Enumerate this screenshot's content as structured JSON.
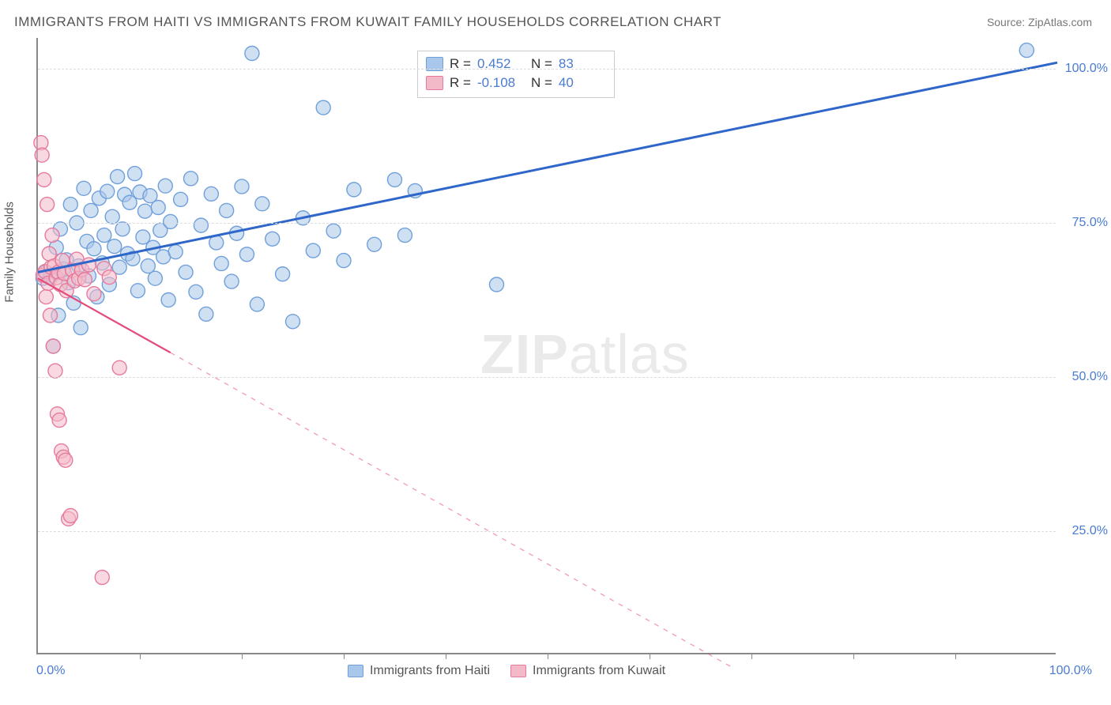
{
  "title": "IMMIGRANTS FROM HAITI VS IMMIGRANTS FROM KUWAIT FAMILY HOUSEHOLDS CORRELATION CHART",
  "source": "Source: ZipAtlas.com",
  "watermark": "ZIPatlas",
  "y_axis_label": "Family Households",
  "chart": {
    "type": "scatter",
    "xlim": [
      0,
      100
    ],
    "ylim": [
      5,
      105
    ],
    "x_ticks_minor": [
      10,
      20,
      30,
      40,
      50,
      60,
      70,
      80,
      90
    ],
    "y_gridlines": [
      25,
      50,
      75,
      100
    ],
    "y_tick_labels": [
      "25.0%",
      "50.0%",
      "75.0%",
      "100.0%"
    ],
    "x_min_label": "0.0%",
    "x_max_label": "100.0%",
    "background_color": "#ffffff",
    "grid_color": "#dcdcdc",
    "axis_color": "#888888",
    "marker_radius": 9,
    "marker_stroke_width": 1.4,
    "series": [
      {
        "name": "Immigrants from Haiti",
        "fill": "#a9c7ea",
        "stroke": "#6fa0da",
        "fill_opacity": 0.55,
        "R": "0.452",
        "N": "83",
        "trend": {
          "x1": 0,
          "y1": 67,
          "x2": 100,
          "y2": 101,
          "solid_until_x": 100,
          "color": "#2f66c9",
          "width": 3
        },
        "points": [
          [
            0.5,
            66
          ],
          [
            0.8,
            67
          ],
          [
            1.2,
            66.1
          ],
          [
            1.5,
            55
          ],
          [
            1.8,
            71
          ],
          [
            2,
            60
          ],
          [
            2.2,
            74
          ],
          [
            2.5,
            67.5
          ],
          [
            2.8,
            69
          ],
          [
            3,
            65.3
          ],
          [
            3.2,
            78
          ],
          [
            3.5,
            62
          ],
          [
            3.8,
            75
          ],
          [
            4,
            68
          ],
          [
            4.2,
            58
          ],
          [
            4.5,
            80.6
          ],
          [
            4.8,
            72
          ],
          [
            5,
            66.4
          ],
          [
            5.2,
            77
          ],
          [
            5.5,
            70.8
          ],
          [
            5.8,
            63
          ],
          [
            6,
            79
          ],
          [
            6.3,
            68.5
          ],
          [
            6.5,
            73
          ],
          [
            6.8,
            80.1
          ],
          [
            7,
            65
          ],
          [
            7.3,
            76
          ],
          [
            7.5,
            71.2
          ],
          [
            7.8,
            82.5
          ],
          [
            8,
            67.8
          ],
          [
            8.3,
            74
          ],
          [
            8.5,
            79.6
          ],
          [
            8.8,
            70
          ],
          [
            9,
            78.3
          ],
          [
            9.3,
            69.2
          ],
          [
            9.5,
            83
          ],
          [
            9.8,
            64
          ],
          [
            10,
            80
          ],
          [
            10.3,
            72.7
          ],
          [
            10.5,
            76.9
          ],
          [
            10.8,
            68
          ],
          [
            11,
            79.4
          ],
          [
            11.3,
            71
          ],
          [
            11.5,
            66
          ],
          [
            11.8,
            77.5
          ],
          [
            12,
            73.8
          ],
          [
            12.3,
            69.5
          ],
          [
            12.5,
            81
          ],
          [
            12.8,
            62.5
          ],
          [
            13,
            75.2
          ],
          [
            13.5,
            70.3
          ],
          [
            14,
            78.8
          ],
          [
            14.5,
            67
          ],
          [
            15,
            82.2
          ],
          [
            15.5,
            63.8
          ],
          [
            16,
            74.6
          ],
          [
            16.5,
            60.2
          ],
          [
            17,
            79.7
          ],
          [
            17.5,
            71.8
          ],
          [
            18,
            68.4
          ],
          [
            18.5,
            77
          ],
          [
            19,
            65.5
          ],
          [
            19.5,
            73.3
          ],
          [
            20,
            80.9
          ],
          [
            20.5,
            69.9
          ],
          [
            21,
            102.5
          ],
          [
            21.5,
            61.8
          ],
          [
            22,
            78.1
          ],
          [
            23,
            72.4
          ],
          [
            24,
            66.7
          ],
          [
            25,
            59
          ],
          [
            26,
            75.8
          ],
          [
            27,
            70.5
          ],
          [
            28,
            93.7
          ],
          [
            29,
            73.7
          ],
          [
            30,
            68.9
          ],
          [
            31,
            80.4
          ],
          [
            33,
            71.5
          ],
          [
            35,
            82
          ],
          [
            36,
            73
          ],
          [
            37,
            80.2
          ],
          [
            45,
            65
          ],
          [
            97,
            103
          ]
        ]
      },
      {
        "name": "Immigrants from Kuwait",
        "fill": "#f4b9c9",
        "stroke": "#e67a9c",
        "fill_opacity": 0.55,
        "R": "-0.108",
        "N": "40",
        "trend": {
          "x1": 0,
          "y1": 66,
          "x2": 68,
          "y2": 3,
          "solid_until_x": 13,
          "color": "#e34b7b",
          "width": 2.2
        },
        "points": [
          [
            0.3,
            88
          ],
          [
            0.4,
            86
          ],
          [
            0.5,
            66.5
          ],
          [
            0.6,
            82
          ],
          [
            0.7,
            67.1
          ],
          [
            0.8,
            63
          ],
          [
            0.9,
            78
          ],
          [
            1,
            65.2
          ],
          [
            1.1,
            70
          ],
          [
            1.2,
            60
          ],
          [
            1.3,
            67.8
          ],
          [
            1.4,
            73
          ],
          [
            1.5,
            55
          ],
          [
            1.6,
            68
          ],
          [
            1.7,
            51
          ],
          [
            1.8,
            66.1
          ],
          [
            1.9,
            44
          ],
          [
            2,
            67
          ],
          [
            2.1,
            43
          ],
          [
            2.2,
            65
          ],
          [
            2.3,
            38
          ],
          [
            2.4,
            68.9
          ],
          [
            2.5,
            37
          ],
          [
            2.6,
            66.8
          ],
          [
            2.7,
            36.5
          ],
          [
            2.8,
            64
          ],
          [
            3,
            27
          ],
          [
            3.2,
            27.5
          ],
          [
            3.4,
            67.3
          ],
          [
            3.6,
            65.6
          ],
          [
            3.8,
            69.1
          ],
          [
            4,
            66
          ],
          [
            4.3,
            67.4
          ],
          [
            4.6,
            65.8
          ],
          [
            5,
            68.2
          ],
          [
            5.5,
            63.5
          ],
          [
            6.3,
            17.5
          ],
          [
            6.5,
            67.6
          ],
          [
            7,
            66.2
          ],
          [
            8,
            51.5
          ]
        ]
      }
    ]
  },
  "legend_corr": {
    "rows": [
      {
        "sw_fill": "#a9c7ea",
        "sw_stroke": "#6fa0da",
        "r_label": "R =",
        "r_value": "0.452",
        "n_label": "N =",
        "n_value": "83"
      },
      {
        "sw_fill": "#f4b9c9",
        "sw_stroke": "#e67a9c",
        "r_label": "R =",
        "r_value": "-0.108",
        "n_label": "N =",
        "n_value": "40"
      }
    ]
  },
  "legend_bottom": {
    "items": [
      {
        "sw_fill": "#a9c7ea",
        "sw_stroke": "#6fa0da",
        "label": "Immigrants from Haiti"
      },
      {
        "sw_fill": "#f4b9c9",
        "sw_stroke": "#e67a9c",
        "label": "Immigrants from Kuwait"
      }
    ]
  }
}
